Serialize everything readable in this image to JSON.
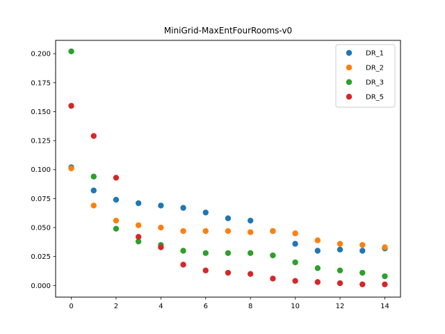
{
  "chart_data": {
    "type": "scatter",
    "title": "MiniGrid-MaxEntFourRooms-v0",
    "xlabel": "",
    "ylabel": "",
    "xlim": [
      -0.7,
      14.7
    ],
    "ylim": [
      -0.01,
      0.2115
    ],
    "xticks": [
      0,
      2,
      4,
      6,
      8,
      10,
      12,
      14
    ],
    "yticks": [
      0.0,
      0.025,
      0.05,
      0.075,
      0.1,
      0.125,
      0.15,
      0.175,
      0.2
    ],
    "ytick_labels": [
      "0.000",
      "0.025",
      "0.050",
      "0.075",
      "0.100",
      "0.125",
      "0.150",
      "0.175",
      "0.200"
    ],
    "grid": false,
    "legend": "top-right",
    "x": [
      0,
      1,
      2,
      3,
      4,
      5,
      6,
      7,
      8,
      9,
      10,
      11,
      12,
      13,
      14
    ],
    "series": [
      {
        "name": "DR_1",
        "color": "#1f77b4",
        "values": [
          0.102,
          0.082,
          0.074,
          0.071,
          0.069,
          0.067,
          0.063,
          0.058,
          0.056,
          0.047,
          0.036,
          0.03,
          0.031,
          0.03,
          0.032
        ]
      },
      {
        "name": "DR_2",
        "color": "#ff7f0e",
        "values": [
          0.101,
          0.069,
          0.056,
          0.052,
          0.05,
          0.047,
          0.047,
          0.047,
          0.046,
          0.047,
          0.045,
          0.039,
          0.036,
          0.035,
          0.033
        ]
      },
      {
        "name": "DR_3",
        "color": "#2ca02c",
        "values": [
          0.202,
          0.094,
          0.049,
          0.038,
          0.035,
          0.03,
          0.028,
          0.028,
          0.028,
          0.026,
          0.02,
          0.015,
          0.013,
          0.011,
          0.008
        ]
      },
      {
        "name": "DR_5",
        "color": "#d62728",
        "values": [
          0.155,
          0.129,
          0.093,
          0.042,
          0.033,
          0.018,
          0.013,
          0.011,
          0.01,
          0.006,
          0.004,
          0.003,
          0.002,
          0.001,
          0.001
        ]
      }
    ]
  }
}
